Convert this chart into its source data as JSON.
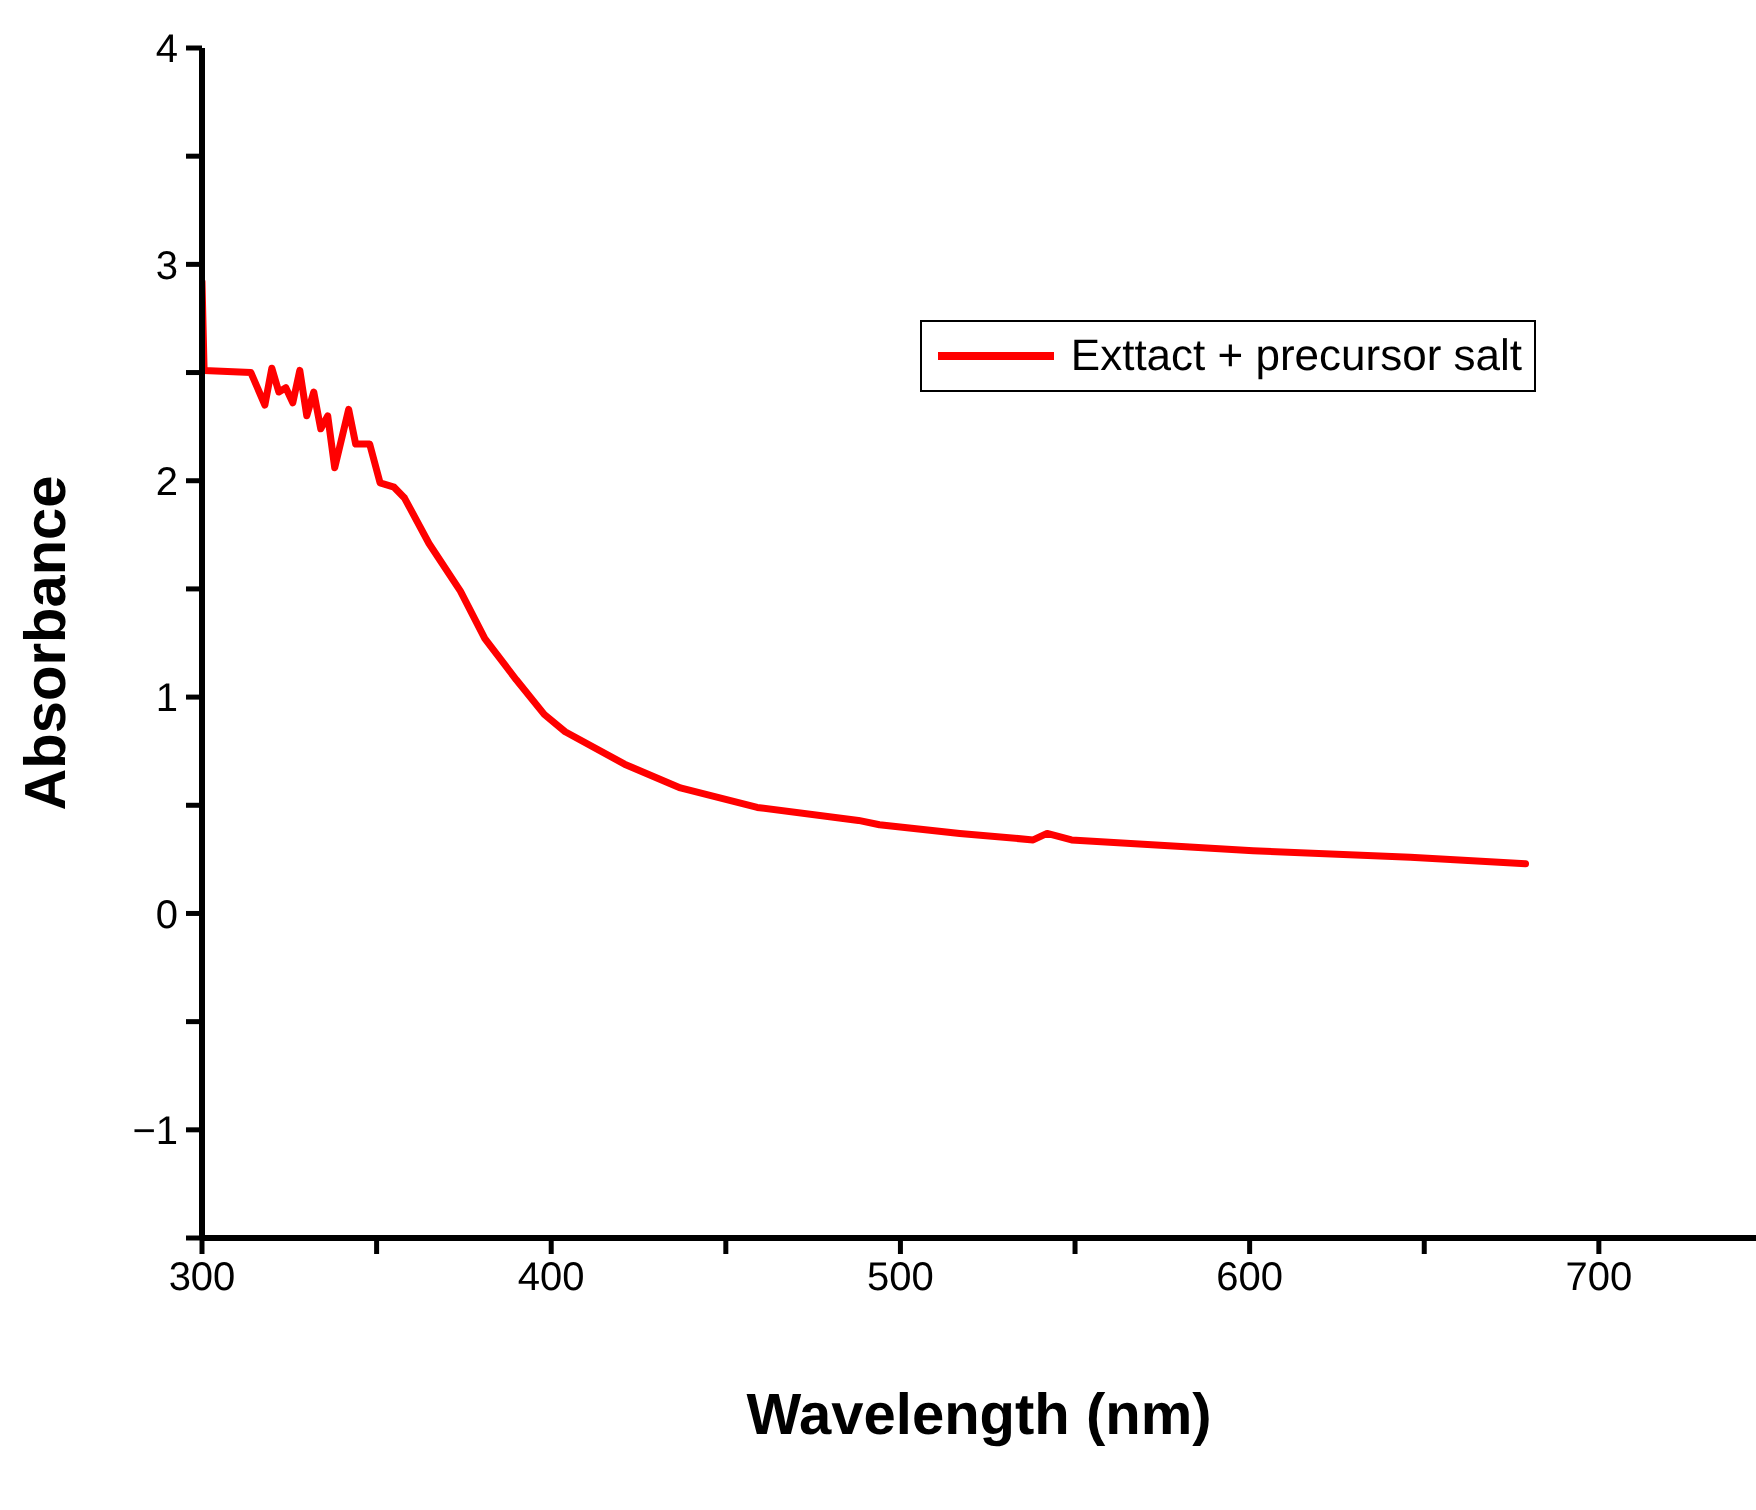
{
  "chart_data": {
    "type": "line",
    "xlabel": "Wavelength (nm)",
    "ylabel": "Absorbance",
    "x": [
      300,
      300.6,
      314,
      318,
      320,
      322,
      324,
      326,
      328,
      330,
      332,
      334,
      336,
      338,
      342,
      344,
      348,
      351,
      355,
      358,
      365,
      374,
      381,
      390,
      398,
      404,
      421,
      437,
      459,
      488,
      494,
      517,
      538,
      542,
      549,
      601,
      646,
      679
    ],
    "series": [
      {
        "name": "Exttact + precursor salt",
        "color": "#ff0000",
        "values": [
          2.92,
          2.51,
          2.5,
          2.35,
          2.52,
          2.41,
          2.43,
          2.36,
          2.51,
          2.3,
          2.41,
          2.24,
          2.3,
          2.06,
          2.33,
          2.17,
          2.17,
          1.99,
          1.97,
          1.92,
          1.71,
          1.49,
          1.27,
          1.08,
          0.92,
          0.84,
          0.69,
          0.58,
          0.49,
          0.43,
          0.41,
          0.37,
          0.34,
          0.37,
          0.34,
          0.29,
          0.26,
          0.23
        ]
      }
    ],
    "xlim": [
      300,
      745
    ],
    "xticks": [
      300,
      {
        "value": 350,
        "label": null
      },
      400,
      {
        "value": 450,
        "label": null
      },
      500,
      {
        "value": 550,
        "label": null
      },
      600,
      {
        "value": 650,
        "label": null
      },
      700
    ],
    "ylim": [
      -1.5,
      4
    ],
    "yticks": [
      {
        "value": -1.5,
        "label": null
      },
      {
        "value": -1,
        "label": "−1"
      },
      {
        "value": -0.5,
        "label": null
      },
      0,
      {
        "value": 0.5,
        "label": null
      },
      1,
      {
        "value": 1.5,
        "label": null
      },
      2,
      {
        "value": 2.5,
        "label": null
      },
      3,
      {
        "value": 3.5,
        "label": null
      },
      4
    ],
    "grid": false,
    "legend": "top right",
    "marker": "none",
    "line_style": "solid"
  }
}
